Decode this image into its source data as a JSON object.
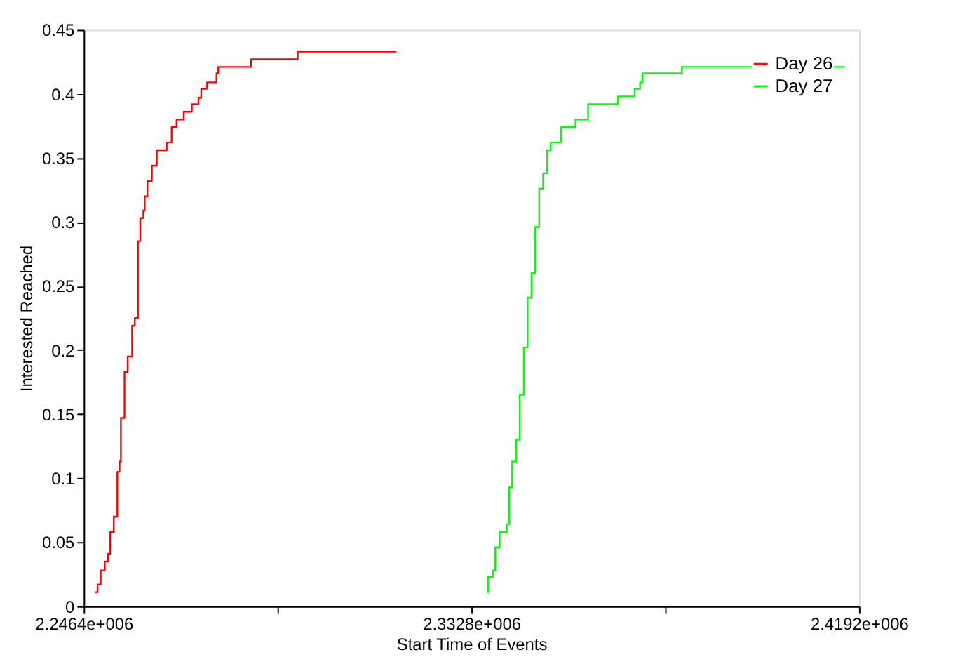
{
  "chart_data": {
    "type": "step",
    "xlabel": "Start Time of Events",
    "ylabel": "Interested Reached",
    "xlim": [
      2246400,
      2419200
    ],
    "xticks": [
      {
        "value": 2246400,
        "label": "2.2464e+006"
      },
      {
        "value": 2289600,
        "label": null
      },
      {
        "value": 2332800,
        "label": "2.3328e+006"
      },
      {
        "value": 2376000,
        "label": null
      },
      {
        "value": 2419200,
        "label": "2.4192e+006"
      }
    ],
    "ylim": [
      0,
      0.45
    ],
    "yticks": [
      0,
      0.05,
      0.1,
      0.15,
      0.2,
      0.25,
      0.3,
      0.35,
      0.4,
      0.45
    ],
    "grid": false,
    "legend": "top right",
    "series": [
      {
        "name": "Day 26",
        "color": "#ff0000",
        "x": [
          2249000,
          2249500,
          2250200,
          2251100,
          2251800,
          2252300,
          2253100,
          2253900,
          2254400,
          2254700,
          2255500,
          2256200,
          2257200,
          2257800,
          2258500,
          2259000,
          2259700,
          2260000,
          2260600,
          2261600,
          2262700,
          2264900,
          2266000,
          2267100,
          2268700,
          2270500,
          2272000,
          2272600,
          2273900,
          2276000,
          2276400,
          2283700,
          2294100,
          2316100
        ],
        "values": [
          0.011,
          0.017,
          0.028,
          0.035,
          0.041,
          0.058,
          0.07,
          0.105,
          0.113,
          0.147,
          0.183,
          0.195,
          0.219,
          0.225,
          0.285,
          0.303,
          0.309,
          0.32,
          0.332,
          0.344,
          0.356,
          0.362,
          0.374,
          0.38,
          0.386,
          0.392,
          0.397,
          0.404,
          0.409,
          0.416,
          0.421,
          0.427,
          0.433,
          0.433
        ]
      },
      {
        "name": "Day 27",
        "color": "#00ff00",
        "x": [
          2336300,
          2336500,
          2337600,
          2338100,
          2339100,
          2340700,
          2341200,
          2341900,
          2342750,
          2343600,
          2344500,
          2345300,
          2346200,
          2347000,
          2347900,
          2348800,
          2349700,
          2350500,
          2352800,
          2356000,
          2358800,
          2365500,
          2369200,
          2370400,
          2370900,
          2379700,
          2416000
        ],
        "values": [
          0.011,
          0.023,
          0.028,
          0.046,
          0.058,
          0.064,
          0.093,
          0.113,
          0.13,
          0.165,
          0.202,
          0.241,
          0.26,
          0.296,
          0.326,
          0.338,
          0.356,
          0.362,
          0.374,
          0.38,
          0.392,
          0.398,
          0.404,
          0.409,
          0.416,
          0.421,
          0.421
        ]
      }
    ]
  }
}
